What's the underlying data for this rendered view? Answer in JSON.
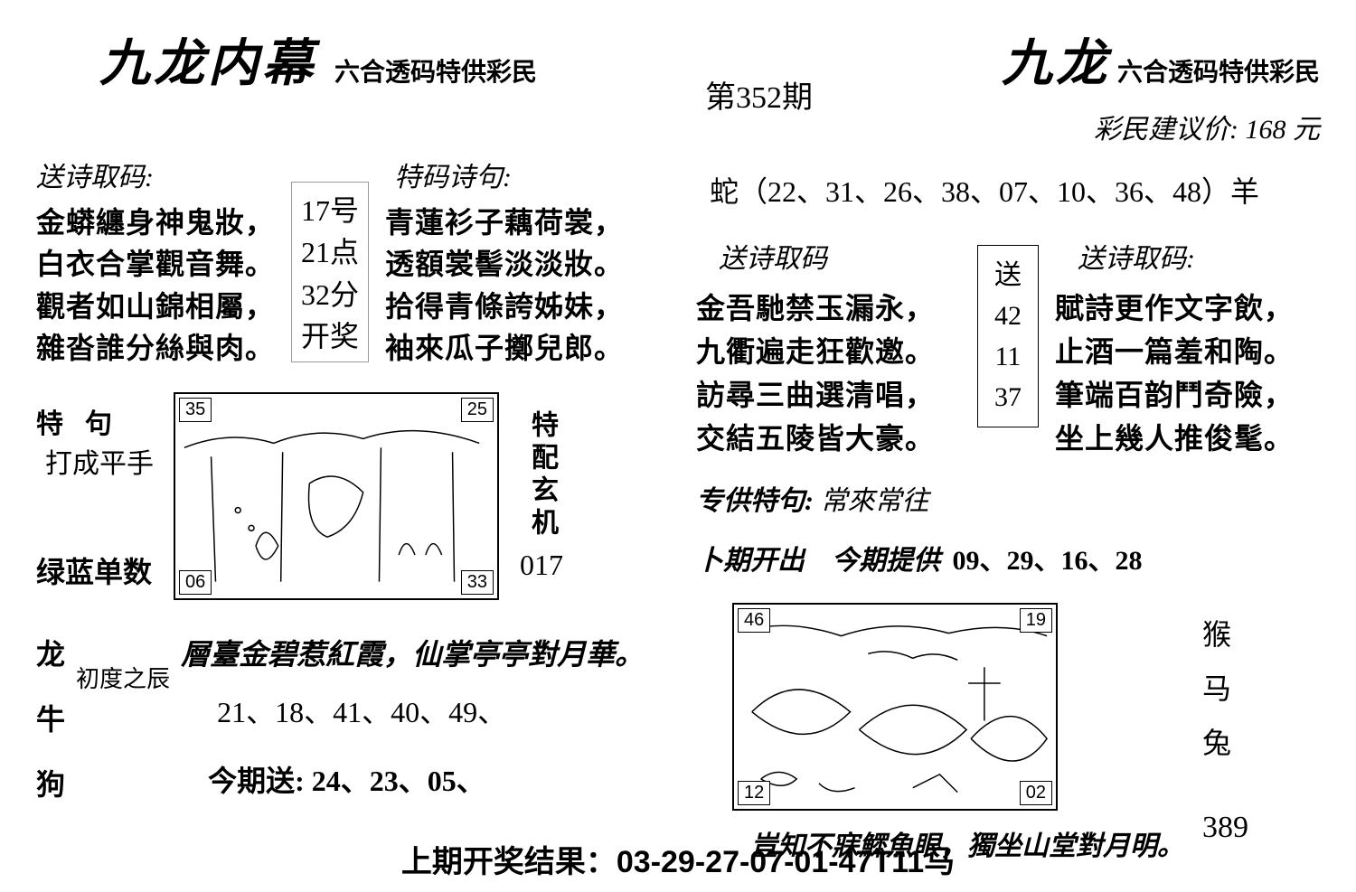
{
  "left": {
    "title": "九龙内幕",
    "subtitle": "六合透码特供彩民",
    "poem1_hdr": "送诗取码:",
    "poem1": [
      "金蟒纏身神鬼妝，",
      "白衣合掌觀音舞。",
      "觀者如山錦相屬，",
      "雜沓誰分絲與肉。"
    ],
    "numbox": [
      "17号",
      "21点",
      "32分",
      "开奖"
    ],
    "poem2_hdr": "特码诗句:",
    "poem2": [
      "青蓮衫子藕荷裳，",
      "透額裳髻淡淡妝。",
      "拾得青條誇姊妹，",
      "袖來瓜子擲兒郎。"
    ],
    "mid": {
      "t1": "特句",
      "t2": "打成平手",
      "bot": "绿蓝单数",
      "vlabel": "特配玄机",
      "n017": "017",
      "corners": {
        "tl": "35",
        "tr": "25",
        "bl": "06",
        "br": "33"
      }
    },
    "low": {
      "zodiac": [
        "龙",
        "牛",
        "狗"
      ],
      "cdzc": "初度之辰",
      "couplet": "層臺金碧惹紅霞，仙掌亭亭對月華。",
      "nums": "21、18、41、40、49、",
      "send": "今期送: 24、23、05、"
    }
  },
  "right": {
    "issue": "第352期",
    "title": "九龙",
    "subtitle": "六合透码特供彩民",
    "price": "彩民建议价: 168 元",
    "zodiac_line": "蛇（22、31、26、38、07、10、36、48）羊",
    "poemL_hdr": "送诗取码",
    "poemL": [
      "金吾馳禁玉漏永，",
      "九衢遍走狂歡邀。",
      "訪尋三曲選清唱，",
      "交結五陵皆大豪。"
    ],
    "sendbox": [
      "送",
      "42",
      "11",
      "37"
    ],
    "poemR_hdr": "送诗取码:",
    "poemR": [
      "賦詩更作文字飲，",
      "止酒一篇羞和陶。",
      "筆端百韵鬥奇險，",
      "坐上幾人推俊髦。"
    ],
    "tj_lbl": "专供特句:",
    "tj_val": "常來常往",
    "prev_a": "卜期开出",
    "prev_b": "今期提供",
    "prev_nums": "09、29、16、28",
    "sketch": {
      "tl": "46",
      "tr": "19",
      "bl": "12",
      "br": "02"
    },
    "zodiac_side": [
      "猴",
      "马",
      "兔"
    ],
    "n389": "389",
    "bottom_couplet": "豈知不寐鰥魚眼，獨坐山堂對月明。"
  },
  "footer": "上期开奖结果：03-29-27-07-01-47T11马"
}
